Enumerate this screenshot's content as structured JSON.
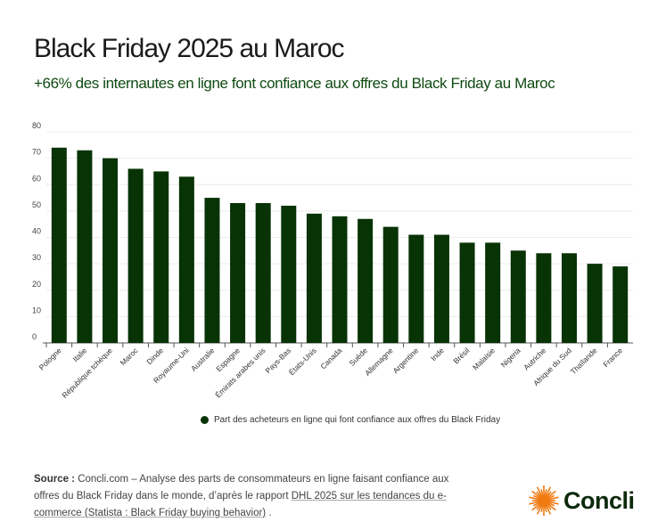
{
  "header": {
    "title": "Black Friday 2025 au Maroc",
    "subtitle": "+66% des internautes en ligne font confiance aux offres du Black Friday au Maroc"
  },
  "chart_data": {
    "type": "bar",
    "categories": [
      "Pologne",
      "Italie",
      "République tchèque",
      "Maroc",
      "Dinde",
      "Royaume-Uni",
      "Australie",
      "Espagne",
      "Émirats arabes unis",
      "Pays-Bas",
      "États-Unis",
      "Canada",
      "Suède",
      "Allemagne",
      "Argentine",
      "Inde",
      "Brésil",
      "Malaisie",
      "Nigeria",
      "Autriche",
      "Afrique du Sud",
      "Thaïlande",
      "France"
    ],
    "series": [
      {
        "name": "Part des acheteurs en ligne qui font confiance aux offres du Black Friday",
        "values": [
          74,
          73,
          70,
          66,
          65,
          63,
          55,
          53,
          53,
          52,
          49,
          48,
          47,
          44,
          41,
          41,
          38,
          38,
          35,
          34,
          34,
          30,
          29
        ]
      }
    ],
    "ylim": [
      0,
      80
    ],
    "yticks": [
      "0",
      "10",
      "20",
      "30",
      "40",
      "50",
      "60",
      "70",
      "80"
    ],
    "grid": true,
    "legend": "bottom",
    "color": "#083305"
  },
  "footer": {
    "source_label": "Source :",
    "source_text": " Concli.com – Analyse des parts de consommateurs en ligne faisant confiance aux offres du Black Friday dans le monde, d’après le rapport ",
    "source_link": "DHL 2025 sur les tendances du e-commerce (Statista : Black Friday buying behavior)",
    "source_end": " .",
    "logo": "Concli",
    "logo_color": "#f07a10"
  }
}
